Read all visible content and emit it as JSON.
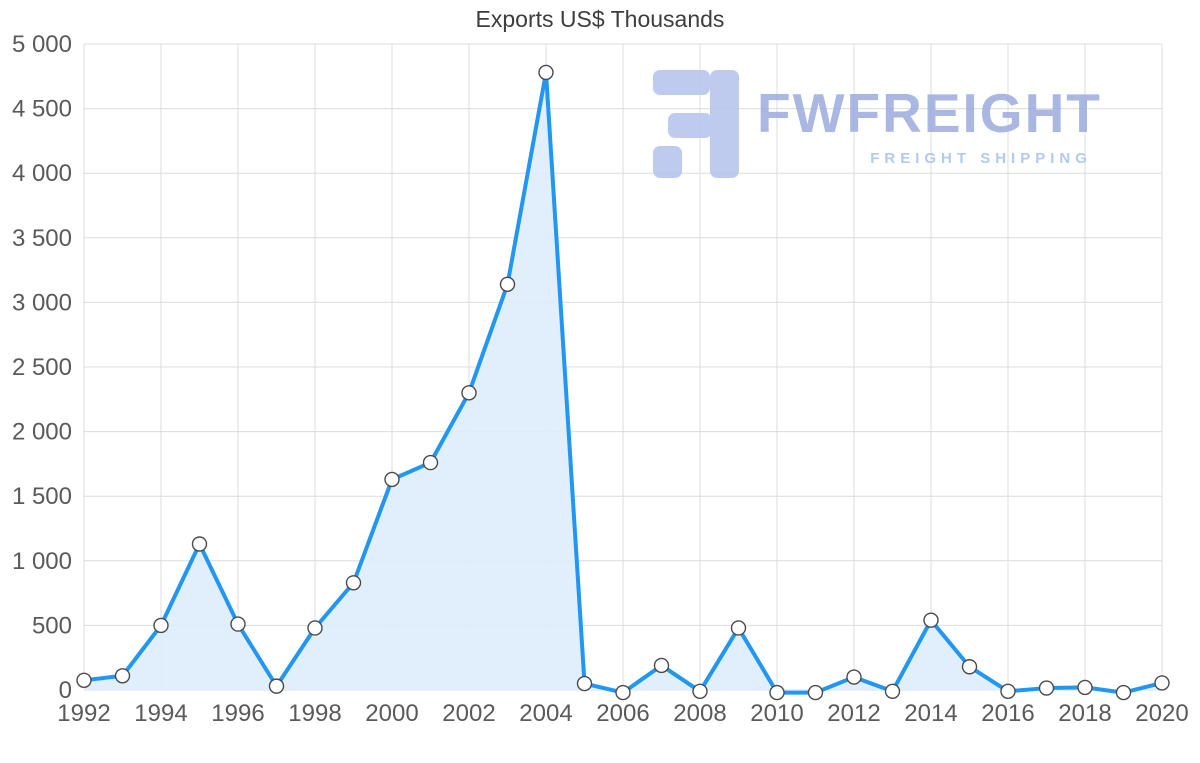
{
  "title": "Exports US$ Thousands",
  "watermark": {
    "brand": "FWFREIGHT",
    "tagline": "FREIGHT SHIPPING"
  },
  "chart_data": {
    "type": "area",
    "title": "Exports US$ Thousands",
    "x": [
      1992,
      1993,
      1994,
      1995,
      1996,
      1997,
      1998,
      1999,
      2000,
      2001,
      2002,
      2003,
      2004,
      2005,
      2006,
      2007,
      2008,
      2009,
      2010,
      2011,
      2012,
      2013,
      2014,
      2015,
      2016,
      2017,
      2018,
      2019,
      2020
    ],
    "values": [
      75,
      110,
      500,
      1130,
      510,
      30,
      480,
      830,
      1630,
      1760,
      2300,
      3140,
      4780,
      50,
      -20,
      190,
      -10,
      480,
      -20,
      -20,
      100,
      -10,
      540,
      180,
      -10,
      15,
      20,
      -20,
      55
    ],
    "xlabel": "",
    "ylabel": "",
    "ylim": [
      0,
      5000
    ],
    "ytick_step": 500,
    "xtick_every": 2,
    "grid": true,
    "legend": "none",
    "colors": {
      "line": "#2196f3",
      "fill": "#ddedfb",
      "marker_fill": "#ffffff",
      "marker_stroke": "#4a4a4a",
      "grid": "#dcdcdc",
      "axis_text": "#5a5a5a",
      "title_text": "#3d3d3d",
      "watermark_text": "#9cabdf",
      "watermark_tagline": "#a4c3ea",
      "logo": "#b5c2ec"
    }
  }
}
